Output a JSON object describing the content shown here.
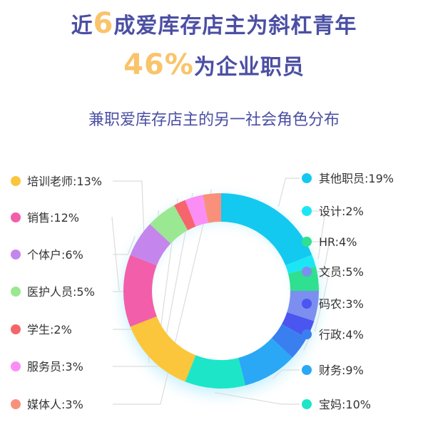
{
  "header": {
    "line1_pre": "近",
    "line1_highlight": "6",
    "line1_post": "成爱库存店主为斜杠青年",
    "line2_highlight": "46%",
    "line2_post": "为企业职员"
  },
  "colors": {
    "title": "#4b4fa3",
    "highlight": "#f9c46b"
  },
  "chart_data": {
    "type": "pie",
    "title": "兼职爱库存店主的另一社会角色分布",
    "donut": true,
    "slices": [
      {
        "label": "其他职员:19%",
        "value": 19,
        "color": "#13c9f0"
      },
      {
        "label": "设计:2%",
        "value": 2,
        "color": "#1ce6f5"
      },
      {
        "label": "HR:4%",
        "value": 4,
        "color": "#2ee08f"
      },
      {
        "label": "文员:5%",
        "value": 5,
        "color": "#7c8ff0"
      },
      {
        "label": "码农:3%",
        "value": 3,
        "color": "#4b55f0"
      },
      {
        "label": "行政:4%",
        "value": 4,
        "color": "#3a7ff0"
      },
      {
        "label": "财务:9%",
        "value": 9,
        "color": "#2aa8f5"
      },
      {
        "label": "宝妈:10%",
        "value": 10,
        "color": "#1de6c8"
      },
      {
        "label": "培训老师:13%",
        "value": 13,
        "color": "#fbc63b"
      },
      {
        "label": "销售:12%",
        "value": 12,
        "color": "#f25ea9"
      },
      {
        "label": "个体户:6%",
        "value": 6,
        "color": "#c486ec"
      },
      {
        "label": "医护人员:5%",
        "value": 5,
        "color": "#9ae891"
      },
      {
        "label": "学生:2%",
        "value": 2,
        "color": "#f5656b"
      },
      {
        "label": "服务员:3%",
        "value": 3,
        "color": "#fb8ef4"
      },
      {
        "label": "媒体人:3%",
        "value": 3,
        "color": "#f9907c"
      }
    ]
  }
}
